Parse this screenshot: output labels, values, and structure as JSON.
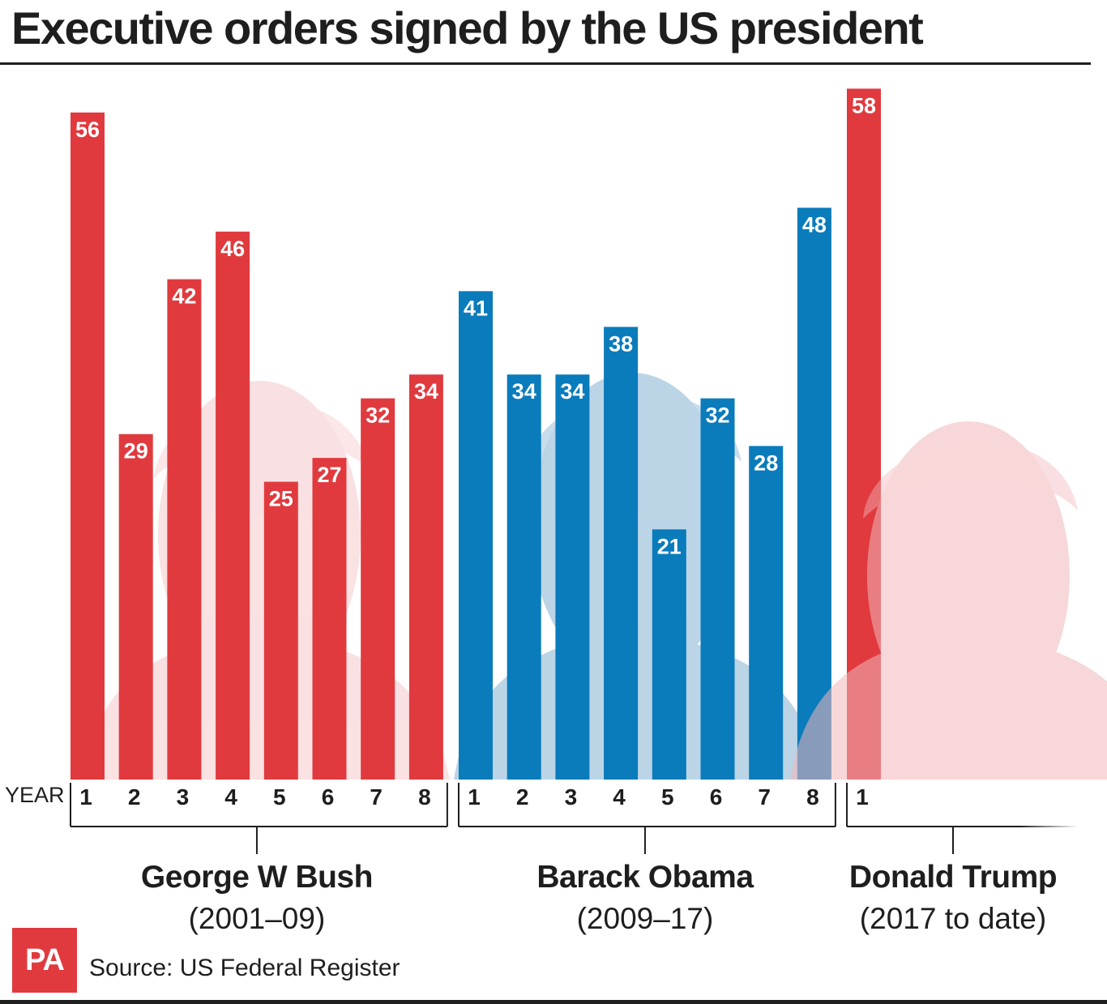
{
  "title": "Executive orders signed by the US president",
  "source": "Source: US Federal Register",
  "logo_text": "PA",
  "colors": {
    "republican": "#e03a3e",
    "democrat": "#0a7bbb",
    "text": "#1e1e1e",
    "photo_tint_red": "#f2b7bb",
    "photo_tint_blue": "#5e9bc6"
  },
  "chart_data": {
    "type": "bar",
    "xlabel": "YEAR",
    "ylim": [
      0,
      60
    ],
    "grid": false,
    "legend": "none",
    "series": [
      {
        "name": "George W Bush",
        "period": "(2001–09)",
        "party_color": "#e03a3e",
        "photo_icon": "bush-portrait-icon",
        "categories": [
          "1",
          "2",
          "3",
          "4",
          "5",
          "6",
          "7",
          "8"
        ],
        "values": [
          56,
          29,
          42,
          46,
          25,
          27,
          32,
          34
        ]
      },
      {
        "name": "Barack Obama",
        "period": "(2009–17)",
        "party_color": "#0a7bbb",
        "photo_icon": "obama-portrait-icon",
        "categories": [
          "1",
          "2",
          "3",
          "4",
          "5",
          "6",
          "7",
          "8"
        ],
        "values": [
          41,
          34,
          34,
          38,
          21,
          32,
          28,
          48
        ]
      },
      {
        "name": "Donald Trump",
        "period": "(2017 to date)",
        "party_color": "#e03a3e",
        "photo_icon": "trump-portrait-icon",
        "categories": [
          "1"
        ],
        "values": [
          58
        ]
      }
    ]
  }
}
